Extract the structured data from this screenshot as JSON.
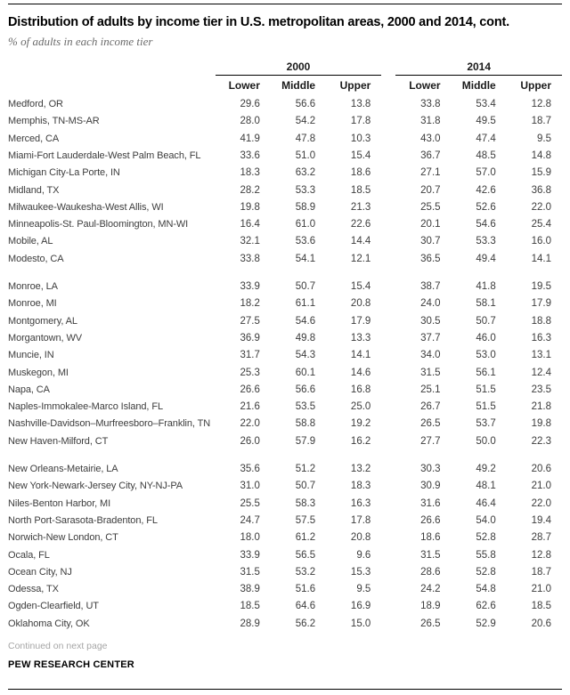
{
  "page": {
    "continued_note": "Continued on next page",
    "source": "PEW RESEARCH CENTER",
    "rule_color": "#000000",
    "body_text_color": "#3d3d3d",
    "muted_text_color": "#a6a6a6"
  },
  "chart_data": {
    "type": "table",
    "title": "Distribution of adults by income tier in U.S. metropolitan areas, 2000 and 2014, cont.",
    "subtitle": "% of adults in each income tier",
    "column_groups": [
      "2000",
      "2014"
    ],
    "columns": [
      "Lower",
      "Middle",
      "Upper"
    ],
    "groups": [
      {
        "rows": [
          {
            "name": "Medford, OR",
            "values": [
              "29.6",
              "56.6",
              "13.8",
              "33.8",
              "53.4",
              "12.8"
            ]
          },
          {
            "name": "Memphis, TN-MS-AR",
            "values": [
              "28.0",
              "54.2",
              "17.8",
              "31.8",
              "49.5",
              "18.7"
            ]
          },
          {
            "name": "Merced, CA",
            "values": [
              "41.9",
              "47.8",
              "10.3",
              "43.0",
              "47.4",
              "9.5"
            ]
          },
          {
            "name": "Miami-Fort Lauderdale-West Palm Beach, FL",
            "values": [
              "33.6",
              "51.0",
              "15.4",
              "36.7",
              "48.5",
              "14.8"
            ]
          },
          {
            "name": "Michigan City-La Porte, IN",
            "values": [
              "18.3",
              "63.2",
              "18.6",
              "27.1",
              "57.0",
              "15.9"
            ]
          },
          {
            "name": "Midland, TX",
            "values": [
              "28.2",
              "53.3",
              "18.5",
              "20.7",
              "42.6",
              "36.8"
            ]
          },
          {
            "name": "Milwaukee-Waukesha-West Allis, WI",
            "values": [
              "19.8",
              "58.9",
              "21.3",
              "25.5",
              "52.6",
              "22.0"
            ]
          },
          {
            "name": "Minneapolis-St. Paul-Bloomington, MN-WI",
            "values": [
              "16.4",
              "61.0",
              "22.6",
              "20.1",
              "54.6",
              "25.4"
            ]
          },
          {
            "name": "Mobile, AL",
            "values": [
              "32.1",
              "53.6",
              "14.4",
              "30.7",
              "53.3",
              "16.0"
            ]
          },
          {
            "name": "Modesto, CA",
            "values": [
              "33.8",
              "54.1",
              "12.1",
              "36.5",
              "49.4",
              "14.1"
            ]
          }
        ]
      },
      {
        "rows": [
          {
            "name": "Monroe, LA",
            "values": [
              "33.9",
              "50.7",
              "15.4",
              "38.7",
              "41.8",
              "19.5"
            ]
          },
          {
            "name": "Monroe, MI",
            "values": [
              "18.2",
              "61.1",
              "20.8",
              "24.0",
              "58.1",
              "17.9"
            ]
          },
          {
            "name": "Montgomery, AL",
            "values": [
              "27.5",
              "54.6",
              "17.9",
              "30.5",
              "50.7",
              "18.8"
            ]
          },
          {
            "name": "Morgantown, WV",
            "values": [
              "36.9",
              "49.8",
              "13.3",
              "37.7",
              "46.0",
              "16.3"
            ]
          },
          {
            "name": "Muncie, IN",
            "values": [
              "31.7",
              "54.3",
              "14.1",
              "34.0",
              "53.0",
              "13.1"
            ]
          },
          {
            "name": "Muskegon, MI",
            "values": [
              "25.3",
              "60.1",
              "14.6",
              "31.5",
              "56.1",
              "12.4"
            ]
          },
          {
            "name": "Napa, CA",
            "values": [
              "26.6",
              "56.6",
              "16.8",
              "25.1",
              "51.5",
              "23.5"
            ]
          },
          {
            "name": "Naples-Immokalee-Marco Island, FL",
            "values": [
              "21.6",
              "53.5",
              "25.0",
              "26.7",
              "51.5",
              "21.8"
            ]
          },
          {
            "name": "Nashville-Davidson–Murfreesboro–Franklin, TN",
            "values": [
              "22.0",
              "58.8",
              "19.2",
              "26.5",
              "53.7",
              "19.8"
            ]
          },
          {
            "name": "New Haven-Milford, CT",
            "values": [
              "26.0",
              "57.9",
              "16.2",
              "27.7",
              "50.0",
              "22.3"
            ]
          }
        ]
      },
      {
        "rows": [
          {
            "name": "New Orleans-Metairie, LA",
            "values": [
              "35.6",
              "51.2",
              "13.2",
              "30.3",
              "49.2",
              "20.6"
            ]
          },
          {
            "name": "New York-Newark-Jersey City, NY-NJ-PA",
            "values": [
              "31.0",
              "50.7",
              "18.3",
              "30.9",
              "48.1",
              "21.0"
            ]
          },
          {
            "name": "Niles-Benton Harbor, MI",
            "values": [
              "25.5",
              "58.3",
              "16.3",
              "31.6",
              "46.4",
              "22.0"
            ]
          },
          {
            "name": "North Port-Sarasota-Bradenton, FL",
            "values": [
              "24.7",
              "57.5",
              "17.8",
              "26.6",
              "54.0",
              "19.4"
            ]
          },
          {
            "name": "Norwich-New London, CT",
            "values": [
              "18.0",
              "61.2",
              "20.8",
              "18.6",
              "52.8",
              "28.7"
            ]
          },
          {
            "name": "Ocala, FL",
            "values": [
              "33.9",
              "56.5",
              "9.6",
              "31.5",
              "55.8",
              "12.8"
            ]
          },
          {
            "name": "Ocean City, NJ",
            "values": [
              "31.5",
              "53.2",
              "15.3",
              "28.6",
              "52.8",
              "18.7"
            ]
          },
          {
            "name": "Odessa, TX",
            "values": [
              "38.9",
              "51.6",
              "9.5",
              "24.2",
              "54.8",
              "21.0"
            ]
          },
          {
            "name": "Ogden-Clearfield, UT",
            "values": [
              "18.5",
              "64.6",
              "16.9",
              "18.9",
              "62.6",
              "18.5"
            ]
          },
          {
            "name": "Oklahoma City, OK",
            "values": [
              "28.9",
              "56.2",
              "15.0",
              "26.5",
              "52.9",
              "20.6"
            ]
          }
        ]
      }
    ]
  }
}
